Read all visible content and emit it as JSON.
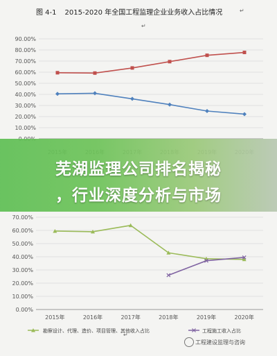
{
  "caption": {
    "figure": "图 4-1",
    "text": "2015-2020 年全国工程监理企业业务收入占比情况"
  },
  "para_marks": [
    "↵",
    "↵",
    "↵"
  ],
  "banner": {
    "line1": "芜湖监理公司排名揭秘",
    "line2": "，行业深度分析与市场"
  },
  "watermark": "工程建设监理与咨询",
  "colors": {
    "red": "#c0504d",
    "blue": "#4f81bd",
    "green": "#9bbb59",
    "purple": "#8064a2"
  },
  "chart_data": [
    {
      "type": "line",
      "x": [
        "2015年",
        "2016年",
        "2017年",
        "2018年",
        "2019年",
        "2020年"
      ],
      "y_ticks": [
        "0.00%",
        "10.00%",
        "20.00%",
        "30.00%",
        "40.00%",
        "50.00%",
        "60.00%",
        "70.00%",
        "80.00%",
        "90.00%"
      ],
      "ylim": [
        0,
        90
      ],
      "series": [
        {
          "values": [
            59.5,
            59.2,
            63.8,
            69.5,
            75.2,
            77.8
          ]
        },
        {
          "values": [
            40.5,
            41.0,
            36.0,
            30.8,
            25.0,
            22.2
          ]
        }
      ]
    },
    {
      "type": "line",
      "x": [
        "2015年",
        "2016年",
        "2017年",
        "2018年",
        "2019年",
        "2020年"
      ],
      "y_ticks": [
        "0.00%",
        "10.00%",
        "20.00%",
        "30.00%",
        "40.00%",
        "50.00%",
        "60.00%",
        "70.00%"
      ],
      "ylim": [
        0,
        70
      ],
      "series": [
        {
          "name": "勘察设计、代理、造价、项目管理、其他收入占比",
          "values": [
            59.5,
            59.0,
            63.8,
            43.0,
            38.5,
            38.0
          ]
        },
        {
          "name": "工程施工收入占比",
          "values": [
            null,
            null,
            null,
            26.0,
            37.0,
            39.5
          ]
        }
      ]
    }
  ]
}
